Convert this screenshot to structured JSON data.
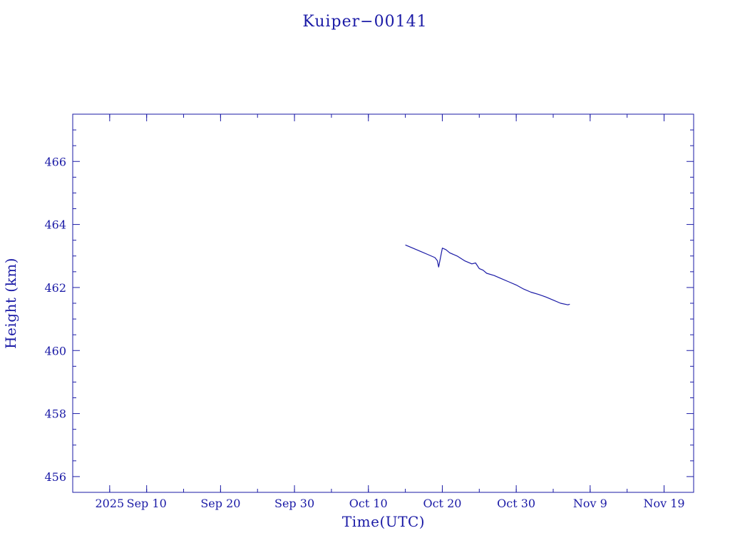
{
  "colors": {
    "axis": "#1a1aa6",
    "series": "#1a1aa6",
    "background": "#ffffff"
  },
  "chart_data": {
    "type": "line",
    "title": "Kuiper−00141",
    "xlabel": "Time(UTC)",
    "ylabel": "Height (km)",
    "xlim": [
      "2025-08-31T00:00",
      "2025-11-23T00:00"
    ],
    "ylim": [
      455.5,
      467.5
    ],
    "xticks": [
      {
        "date": "2025-09-05",
        "label": "2025"
      },
      {
        "date": "2025-09-10",
        "label": "Sep 10"
      },
      {
        "date": "2025-09-20",
        "label": "Sep 20"
      },
      {
        "date": "2025-09-30",
        "label": "Sep 30"
      },
      {
        "date": "2025-10-10",
        "label": "Oct 10"
      },
      {
        "date": "2025-10-20",
        "label": "Oct 20"
      },
      {
        "date": "2025-10-30",
        "label": "Oct 30"
      },
      {
        "date": "2025-11-09",
        "label": "Nov  9"
      },
      {
        "date": "2025-11-19",
        "label": "Nov 19"
      }
    ],
    "yticks": [
      456,
      458,
      460,
      462,
      464,
      466
    ],
    "grid": false,
    "series": [
      {
        "x": [
          "2025-10-15T00:00",
          "2025-10-16T00:00",
          "2025-10-17T00:00",
          "2025-10-18T00:00",
          "2025-10-19T00:00",
          "2025-10-19T08:00",
          "2025-10-19T12:00",
          "2025-10-19T18:00",
          "2025-10-20T00:00",
          "2025-10-20T12:00",
          "2025-10-21T00:00",
          "2025-10-22T00:00",
          "2025-10-23T00:00",
          "2025-10-24T00:00",
          "2025-10-24T12:00",
          "2025-10-25T00:00",
          "2025-10-25T12:00",
          "2025-10-26T00:00",
          "2025-10-27T00:00",
          "2025-10-28T00:00",
          "2025-10-29T00:00",
          "2025-10-30T00:00",
          "2025-10-31T00:00",
          "2025-11-01T00:00",
          "2025-11-02T00:00",
          "2025-11-03T00:00",
          "2025-11-04T00:00",
          "2025-11-05T00:00",
          "2025-11-06T00:00",
          "2025-11-06T06:00"
        ],
        "y": [
          463.35,
          463.25,
          463.15,
          463.05,
          462.95,
          462.85,
          462.65,
          462.95,
          463.25,
          463.2,
          463.1,
          463.0,
          462.85,
          462.75,
          462.78,
          462.6,
          462.55,
          462.45,
          462.38,
          462.28,
          462.18,
          462.08,
          461.95,
          461.85,
          461.78,
          461.7,
          461.6,
          461.5,
          461.45,
          461.47
        ]
      }
    ]
  }
}
